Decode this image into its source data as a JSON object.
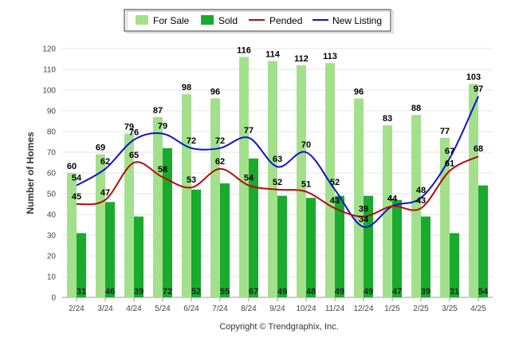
{
  "chart_data": {
    "type": "bar",
    "title": "",
    "xlabel": "",
    "ylabel": "Number of Homes",
    "ylim": [
      0,
      120
    ],
    "yticks": [
      0,
      10,
      20,
      30,
      40,
      50,
      60,
      70,
      80,
      90,
      100,
      110,
      120
    ],
    "grid": true,
    "legend_position": "top-center",
    "categories": [
      "2/24",
      "3/24",
      "4/24",
      "5/24",
      "6/24",
      "7/24",
      "8/24",
      "9/24",
      "10/24",
      "11/24",
      "12/24",
      "1/25",
      "2/25",
      "3/25",
      "4/25"
    ],
    "series": [
      {
        "name": "For Sale",
        "type": "bar",
        "color": "#a3e08c",
        "values": [
          60,
          69,
          79,
          87,
          98,
          96,
          116,
          114,
          112,
          113,
          96,
          83,
          88,
          77,
          103
        ]
      },
      {
        "name": "Sold",
        "type": "bar",
        "color": "#1aaa2e",
        "values": [
          31,
          46,
          39,
          72,
          52,
          55,
          67,
          49,
          48,
          49,
          49,
          47,
          39,
          31,
          54
        ]
      },
      {
        "name": "Pended",
        "type": "line",
        "color": "#b40c0c",
        "values": [
          45,
          47,
          65,
          58,
          53,
          62,
          54,
          52,
          51,
          43,
          39,
          44,
          43,
          61,
          68
        ]
      },
      {
        "name": "New Listing",
        "type": "line",
        "color": "#1010d4",
        "values": [
          54,
          62,
          76,
          79,
          72,
          72,
          77,
          63,
          70,
          52,
          34,
          44,
          48,
          67,
          97
        ]
      }
    ],
    "footer": "Copyright © Trendgraphix, Inc."
  }
}
